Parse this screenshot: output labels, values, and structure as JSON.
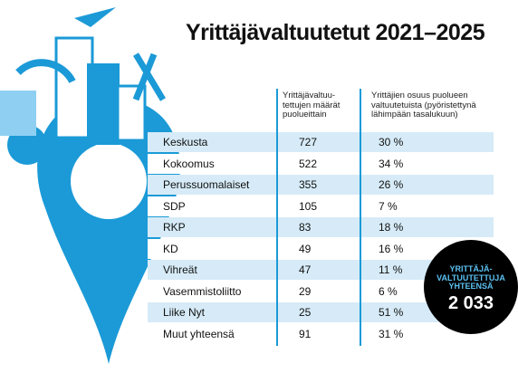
{
  "header": {
    "title": "Yrittäjävaltuutetut 2021–2025"
  },
  "table": {
    "columns": [
      [
        "Yrittäjävaltuu-",
        "tettujen määrät",
        "puolueittain"
      ],
      [
        "Yrittäjien osuus puolueen",
        "valtuutetuista (pyöristettynä",
        "lähimpään tasalukuun)"
      ]
    ],
    "rows": [
      [
        "Keskusta",
        727,
        "30 %"
      ],
      [
        "Kokoomus",
        522,
        "34 %"
      ],
      [
        "Perussuomalaiset",
        355,
        "26 %"
      ],
      [
        "SDP",
        105,
        "7 %"
      ],
      [
        "RKP",
        83,
        "18 %"
      ],
      [
        "KD",
        49,
        "16 %"
      ],
      [
        "Vihreät",
        47,
        "11 %"
      ],
      [
        "Vasemmistoliitto",
        29,
        "6 %"
      ],
      [
        "Liike Nyt",
        25,
        "51 %"
      ],
      [
        "Muut yhteensä",
        91,
        "31 %"
      ]
    ]
  },
  "badge": {
    "lines": [
      "YRITTÄJÄ-",
      "VALTUUTETTUJA",
      "YHTEENSÄ"
    ],
    "total": "2 033"
  }
}
